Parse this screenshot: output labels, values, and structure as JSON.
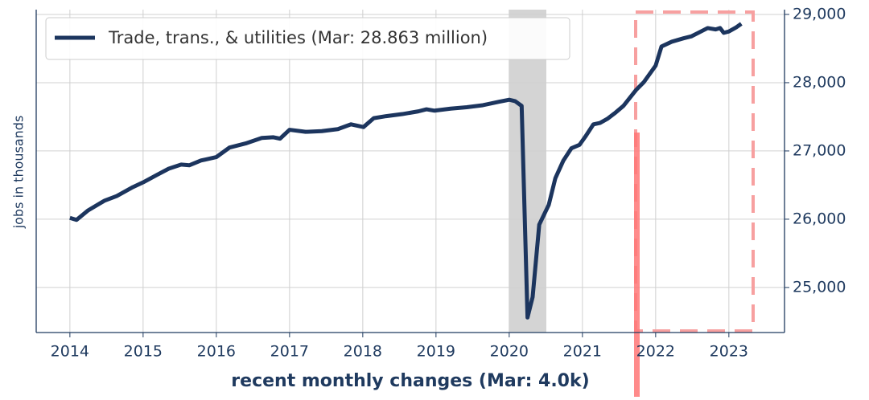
{
  "chart_data": {
    "type": "line",
    "x_label": "recent monthly changes (Mar: 4.0k)",
    "y_label": "jobs in thousands",
    "x": [
      2014.0,
      2014.09,
      2014.25,
      2014.47,
      2014.64,
      2014.86,
      2015.0,
      2015.19,
      2015.35,
      2015.52,
      2015.63,
      2015.79,
      2016.0,
      2016.18,
      2016.4,
      2016.62,
      2016.78,
      2016.87,
      2017.0,
      2017.22,
      2017.44,
      2017.66,
      2017.84,
      2018.01,
      2018.15,
      2018.32,
      2018.54,
      2018.76,
      2018.87,
      2018.98,
      2019.2,
      2019.42,
      2019.64,
      2019.86,
      2020.0,
      2020.08,
      2020.17,
      2020.25,
      2020.32,
      2020.41,
      2020.54,
      2020.63,
      2020.74,
      2020.85,
      2020.96,
      2021.04,
      2021.15,
      2021.24,
      2021.34,
      2021.45,
      2021.56,
      2021.73,
      2021.84,
      2022.0,
      2022.08,
      2022.22,
      2022.38,
      2022.49,
      2022.6,
      2022.71,
      2022.82,
      2022.88,
      2022.93,
      2023.0,
      2023.1,
      2023.17
    ],
    "series": [
      {
        "name": "Trade, trans., & utilities (Mar: 28.863 million)",
        "color": "#1c355e",
        "values": [
          26020,
          25990,
          26130,
          26270,
          26340,
          26470,
          26540,
          26650,
          26740,
          26800,
          26790,
          26860,
          26910,
          27050,
          27110,
          27190,
          27200,
          27180,
          27310,
          27280,
          27290,
          27320,
          27390,
          27350,
          27480,
          27510,
          27540,
          27580,
          27610,
          27590,
          27620,
          27640,
          27670,
          27720,
          27750,
          27730,
          27660,
          24560,
          24860,
          25920,
          26210,
          26600,
          26860,
          27040,
          27090,
          27210,
          27390,
          27410,
          27470,
          27560,
          27660,
          27890,
          28010,
          28250,
          28530,
          28600,
          28650,
          28680,
          28740,
          28800,
          28780,
          28800,
          28730,
          28750,
          28810,
          28863
        ]
      }
    ],
    "xlim": [
      2013.54,
      2023.76
    ],
    "xticks": [
      2014,
      2015,
      2016,
      2017,
      2018,
      2019,
      2020,
      2021,
      2022,
      2023
    ],
    "ylim": [
      24340,
      29070
    ],
    "yticks": [
      {
        "value": 25000,
        "label": "25,000"
      },
      {
        "value": 26000,
        "label": "26,000"
      },
      {
        "value": 27000,
        "label": "27,000"
      },
      {
        "value": 28000,
        "label": "28,000"
      },
      {
        "value": 29000,
        "label": "29,000"
      }
    ],
    "grid": true,
    "legend": "upper left"
  }
}
